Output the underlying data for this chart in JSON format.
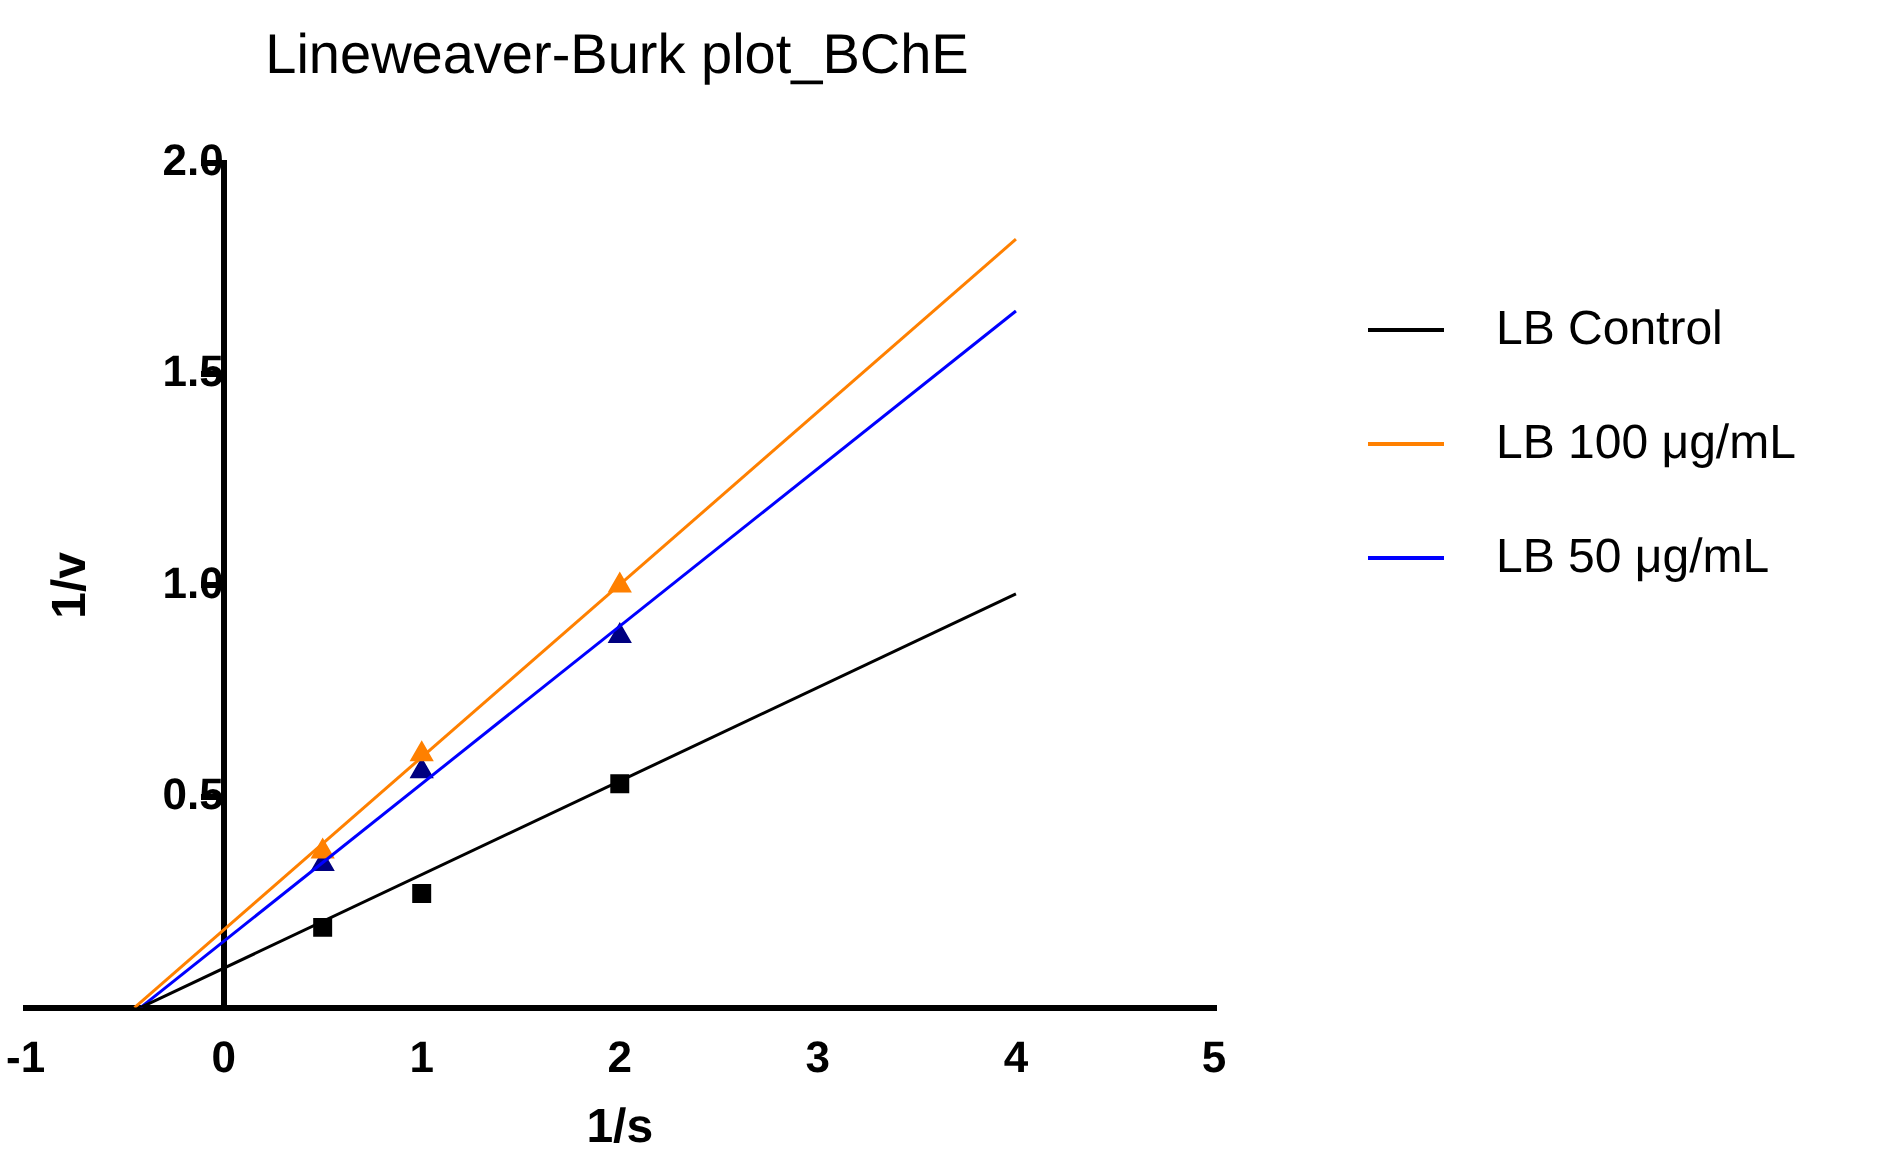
{
  "chart_data": {
    "type": "scatter",
    "title": "Lineweaver-Burk plot_BChE",
    "xlabel": "1/s",
    "ylabel": "1/v",
    "xlim": [
      -1,
      5
    ],
    "xticks": [
      -1,
      0,
      1,
      2,
      3,
      4,
      5
    ],
    "ylim": [
      0,
      2
    ],
    "yticks": [
      0.5,
      {
        "value": 1,
        "label": "1.0"
      },
      1.5,
      {
        "value": 2,
        "label": "2.0"
      }
    ],
    "grid": false,
    "legend": "right",
    "series": [
      {
        "name": "LB Control",
        "type": "line",
        "color": "#000000",
        "x": [
          -0.42,
          4
        ],
        "values": [
          0,
          0.98
        ],
        "marker": "none"
      },
      {
        "name": "LB 100 μg/mL",
        "type": "line",
        "color": "#ff8000",
        "x": [
          -0.45,
          4
        ],
        "values": [
          0,
          1.82
        ],
        "marker": "none"
      },
      {
        "name": "LB 50 μg/mL",
        "type": "line",
        "color": "#0000ff",
        "x": [
          -0.42,
          4
        ],
        "values": [
          0,
          1.65
        ],
        "marker": "none"
      },
      {
        "type": "scatter",
        "color": "#000000",
        "x": [
          0.5,
          1,
          2
        ],
        "values": [
          0.19,
          0.27,
          0.53
        ],
        "marker": "square"
      },
      {
        "type": "scatter",
        "color": "#ff8000",
        "x": [
          0.5,
          1,
          2
        ],
        "values": [
          0.37,
          0.6,
          1.0
        ],
        "marker": "triangle"
      },
      {
        "type": "scatter",
        "color": "#000080",
        "x": [
          0.5,
          1,
          2
        ],
        "values": [
          0.34,
          0.56,
          0.88
        ],
        "marker": "triangle"
      }
    ]
  }
}
